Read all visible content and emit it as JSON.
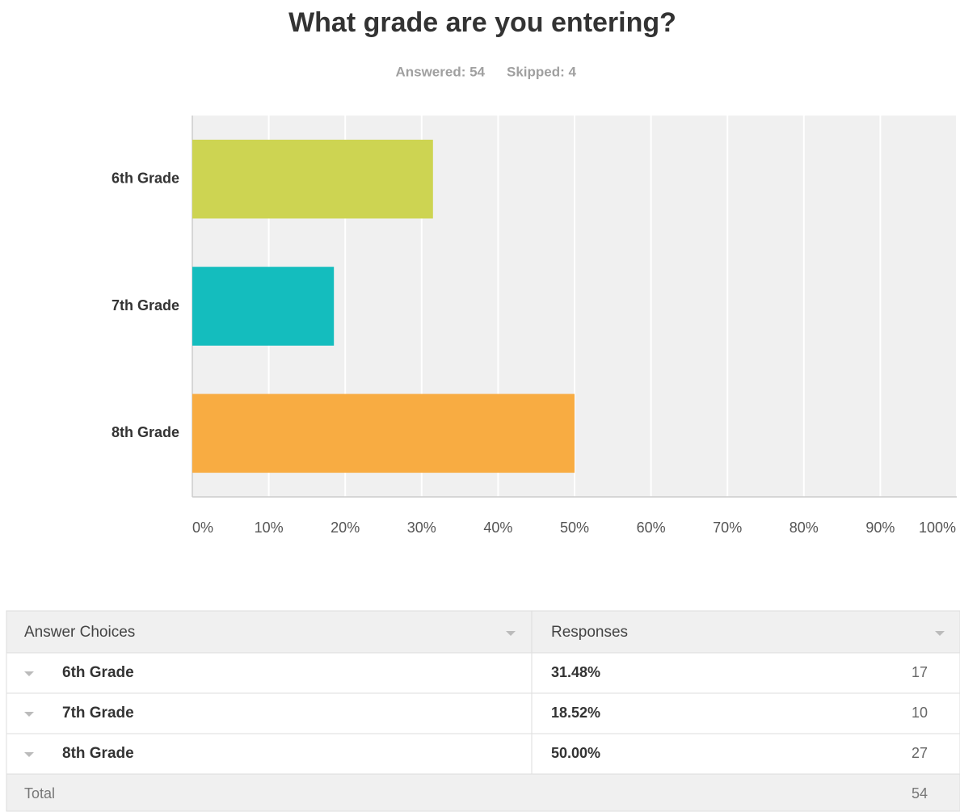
{
  "chart_data": {
    "type": "hbar",
    "title": "What grade are you entering?",
    "subtitle": [
      "Answered: 54",
      "Skipped: 4"
    ],
    "categories": [
      "6th Grade",
      "7th Grade",
      "8th Grade"
    ],
    "values": [
      31.48,
      18.52,
      50
    ],
    "colors": [
      "#cdd452",
      "#14bdbe",
      "#f8ac42"
    ],
    "xlim": [
      0,
      100
    ],
    "xticks": [
      {
        "value": 0,
        "label": "0%"
      },
      {
        "value": 10,
        "label": "10%"
      },
      {
        "value": 20,
        "label": "20%"
      },
      {
        "value": 30,
        "label": "30%"
      },
      {
        "value": 40,
        "label": "40%"
      },
      {
        "value": 50,
        "label": "50%"
      },
      {
        "value": 60,
        "label": "60%"
      },
      {
        "value": 70,
        "label": "70%"
      },
      {
        "value": 80,
        "label": "80%"
      },
      {
        "value": 90,
        "label": "90%"
      },
      {
        "value": 100,
        "label": "100%"
      }
    ],
    "grid": true
  },
  "table": {
    "columns": [
      "Answer Choices",
      "Responses"
    ],
    "rows": [
      [
        "6th Grade",
        "31.48%",
        17
      ],
      [
        "7th Grade",
        "18.52%",
        10
      ],
      [
        "8th Grade",
        "50.00%",
        27
      ]
    ],
    "total": {
      "label": "Total",
      "value": 54
    }
  }
}
